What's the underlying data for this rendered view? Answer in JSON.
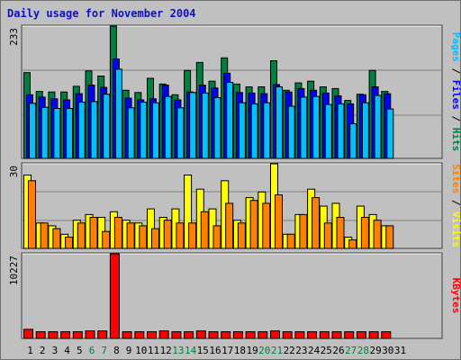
{
  "chart_data": {
    "type": "bar",
    "title": "Daily usage for November 2004",
    "days": [
      "1",
      "2",
      "3",
      "4",
      "5",
      "6",
      "7",
      "8",
      "9",
      "10",
      "11",
      "12",
      "13",
      "14",
      "15",
      "16",
      "17",
      "18",
      "19",
      "20",
      "21",
      "22",
      "23",
      "24",
      "25",
      "26",
      "27",
      "28",
      "29",
      "30",
      "31"
    ],
    "weekend_days": [
      "6",
      "7",
      "13",
      "14",
      "20",
      "21",
      "27",
      "28"
    ],
    "panels": [
      {
        "id": "requests",
        "ymax_label": "233",
        "ymax": 233,
        "series": [
          {
            "name": "Hits",
            "color": "#008040",
            "values": [
              151,
              118,
              117,
              117,
              127,
              154,
              145,
              233,
              120,
              116,
              141,
              131,
              112,
              155,
              169,
              136,
              177,
              131,
              126,
              126,
              172,
              120,
              133,
              136,
              126,
              123,
              102,
              113,
              155,
              118,
              null
            ]
          },
          {
            "name": "Files",
            "color": "#0000ff",
            "values": [
              112,
              108,
              105,
              103,
              114,
              129,
              125,
              175,
              106,
              103,
              105,
              129,
              103,
              117,
              129,
              124,
              150,
              116,
              115,
              114,
              130,
              117,
              123,
              120,
              115,
              110,
              96,
              112,
              126,
              114,
              null
            ]
          },
          {
            "name": "Pages",
            "color": "#00c0ff",
            "values": [
              97,
              90,
              88,
              88,
              99,
              100,
              113,
              157,
              89,
              99,
              98,
              109,
              89,
              116,
              115,
              107,
              134,
              98,
              96,
              98,
              126,
              92,
              108,
              109,
              95,
              96,
              61,
              98,
              111,
              87,
              null
            ]
          }
        ],
        "legend_parts": [
          {
            "label": "Pages",
            "color": "#00c0ff"
          },
          {
            "label": " / ",
            "color": "#000000"
          },
          {
            "label": "Files",
            "color": "#0000ff"
          },
          {
            "label": " / ",
            "color": "#000000"
          },
          {
            "label": "Hits",
            "color": "#008040"
          }
        ]
      },
      {
        "id": "visits",
        "ymax_label": "30",
        "ymax": 30,
        "series": [
          {
            "name": "Visits",
            "color": "#ffff00",
            "values": [
              26,
              9,
              8,
              5,
              10,
              12,
              11,
              13,
              10,
              9,
              14,
              11,
              14,
              26,
              21,
              14,
              24,
              10,
              18,
              20,
              30,
              5,
              12,
              21,
              15,
              16,
              4,
              15,
              12,
              8,
              null
            ]
          },
          {
            "name": "Sites",
            "color": "#ff8000",
            "values": [
              24,
              9,
              7,
              4,
              9,
              11,
              6,
              11,
              9,
              8,
              7,
              10,
              9,
              9,
              13,
              8,
              16,
              9,
              17,
              16,
              19,
              5,
              12,
              18,
              9,
              11,
              3,
              11,
              10,
              8,
              null
            ]
          }
        ],
        "legend_parts": [
          {
            "label": "Sites",
            "color": "#ff8000"
          },
          {
            "label": " / ",
            "color": "#000000"
          },
          {
            "label": "Visits",
            "color": "#ffff00"
          }
        ]
      },
      {
        "id": "kbytes",
        "ymax_label": "10227",
        "ymax": 10227,
        "series": [
          {
            "name": "KBytes",
            "color": "#ff0000",
            "values": [
              1100,
              800,
              800,
              800,
              800,
              900,
              900,
              10227,
              800,
              800,
              800,
              900,
              800,
              800,
              900,
              800,
              800,
              800,
              800,
              800,
              900,
              800,
              800,
              800,
              800,
              800,
              800,
              800,
              800,
              800,
              null
            ]
          }
        ],
        "legend_parts": [
          {
            "label": "KBytes",
            "color": "#ff0000"
          }
        ]
      }
    ]
  }
}
